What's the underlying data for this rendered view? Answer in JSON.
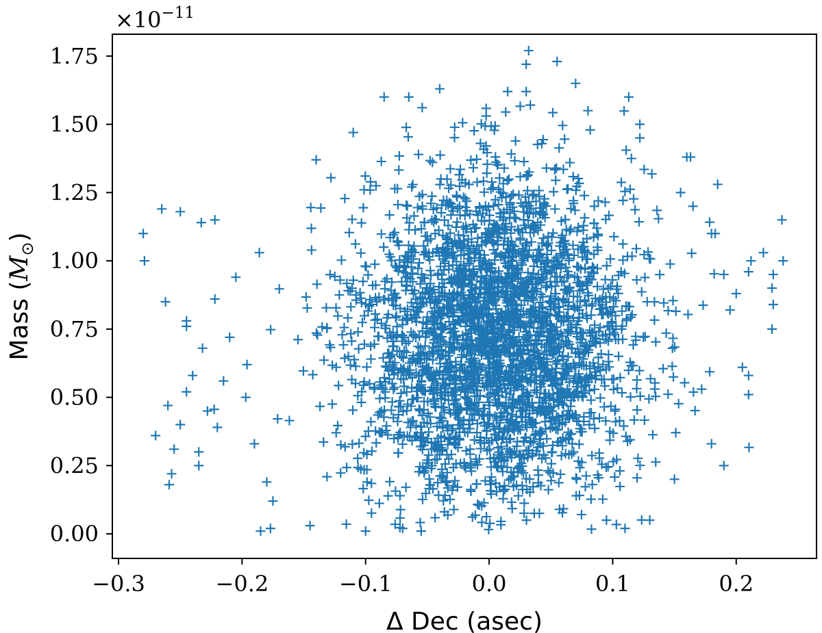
{
  "chart_data": {
    "type": "scatter",
    "title": "",
    "xlabel": "Δ Dec (asec)",
    "ylabel": "Mass (M⊙)",
    "ylabel_text": "Mass (",
    "ylabel_symbol": "M",
    "ylabel_subscript": "⊙",
    "ylabel_close": ")",
    "y_scale_note": "×10⁻¹¹",
    "y_scale_base": "×10",
    "y_scale_exponent": "−11",
    "xlim": [
      -0.305,
      0.265
    ],
    "ylim": [
      -0.09,
      1.83
    ],
    "xticks": [
      -0.3,
      -0.2,
      -0.1,
      0.0,
      0.1,
      0.2
    ],
    "xtick_labels": [
      "−0.3",
      "−0.2",
      "−0.1",
      "0.0",
      "0.1",
      "0.2"
    ],
    "yticks": [
      0.0,
      0.25,
      0.5,
      0.75,
      1.0,
      1.25,
      1.5,
      1.75
    ],
    "ytick_labels": [
      "0.00",
      "0.25",
      "0.50",
      "0.75",
      "1.00",
      "1.25",
      "1.50",
      "1.75"
    ],
    "grid": false,
    "marker": "+",
    "color": "#1f77b4",
    "series": [
      {
        "core": {
          "description_count": 14000,
          "x_mean": 0.005,
          "x_sd": 0.055,
          "y_mean": 0.72,
          "y_sd": 0.3,
          "y_range": [
            0.0,
            1.62
          ]
        },
        "outliers": [
          [
            -0.28,
            1.1
          ],
          [
            -0.279,
            1.0
          ],
          [
            -0.265,
            1.19
          ],
          [
            -0.262,
            0.85
          ],
          [
            -0.25,
            1.18
          ],
          [
            -0.233,
            1.14
          ],
          [
            -0.222,
            1.15
          ],
          [
            -0.222,
            0.86
          ],
          [
            -0.245,
            0.78
          ],
          [
            -0.245,
            0.76
          ],
          [
            -0.26,
            0.47
          ],
          [
            -0.27,
            0.36
          ],
          [
            -0.259,
            0.18
          ],
          [
            -0.257,
            0.22
          ],
          [
            -0.255,
            0.31
          ],
          [
            -0.235,
            0.25
          ],
          [
            -0.235,
            0.3
          ],
          [
            -0.24,
            0.58
          ],
          [
            -0.25,
            0.4
          ],
          [
            -0.245,
            0.52
          ],
          [
            -0.232,
            0.68
          ],
          [
            -0.228,
            0.45
          ],
          [
            -0.21,
            0.72
          ],
          [
            -0.205,
            0.94
          ],
          [
            -0.186,
            1.03
          ],
          [
            -0.185,
            0.01
          ],
          [
            -0.177,
            0.02
          ],
          [
            -0.18,
            0.19
          ],
          [
            -0.197,
            0.5
          ],
          [
            -0.196,
            0.62
          ],
          [
            -0.215,
            0.56
          ],
          [
            -0.22,
            0.39
          ],
          [
            -0.19,
            0.33
          ],
          [
            -0.175,
            0.12
          ],
          [
            0.238,
            1.0
          ],
          [
            0.237,
            1.15
          ],
          [
            0.23,
            0.95
          ],
          [
            0.229,
            0.9
          ],
          [
            0.23,
            0.84
          ],
          [
            0.229,
            0.75
          ],
          [
            0.222,
            1.03
          ],
          [
            0.212,
            1.0
          ],
          [
            0.21,
            0.96
          ],
          [
            0.21,
            0.58
          ],
          [
            0.21,
            0.51
          ],
          [
            0.205,
            0.61
          ],
          [
            0.2,
            0.88
          ],
          [
            0.195,
            0.82
          ],
          [
            0.19,
            0.95
          ],
          [
            0.19,
            0.25
          ],
          [
            0.185,
            1.28
          ],
          [
            0.183,
            1.1
          ],
          [
            0.18,
            1.1
          ],
          [
            0.18,
            0.33
          ],
          [
            0.172,
            0.53
          ],
          [
            0.165,
            1.2
          ],
          [
            0.163,
            1.38
          ],
          [
            0.16,
            1.38
          ],
          [
            0.155,
            1.25
          ],
          [
            0.15,
            0.2
          ],
          [
            0.13,
            0.05
          ],
          [
            0.122,
            1.5
          ],
          [
            0.122,
            1.45
          ],
          [
            0.113,
            1.6
          ],
          [
            0.11,
            0.02
          ],
          [
            0.095,
            0.05
          ],
          [
            0.08,
            1.55
          ],
          [
            0.07,
            1.65
          ],
          [
            0.055,
            1.73
          ],
          [
            0.032,
            1.77
          ],
          [
            0.03,
            1.72
          ],
          [
            0.03,
            1.62
          ],
          [
            0.015,
            1.62
          ],
          [
            -0.04,
            1.63
          ],
          [
            -0.065,
            1.6
          ],
          [
            -0.085,
            1.6
          ],
          [
            -0.11,
            1.47
          ],
          [
            -0.14,
            1.37
          ],
          [
            -0.145,
            0.03
          ],
          [
            -0.1,
            0.01
          ],
          [
            -0.07,
            0.02
          ],
          [
            -0.055,
            0.01
          ]
        ]
      }
    ]
  }
}
